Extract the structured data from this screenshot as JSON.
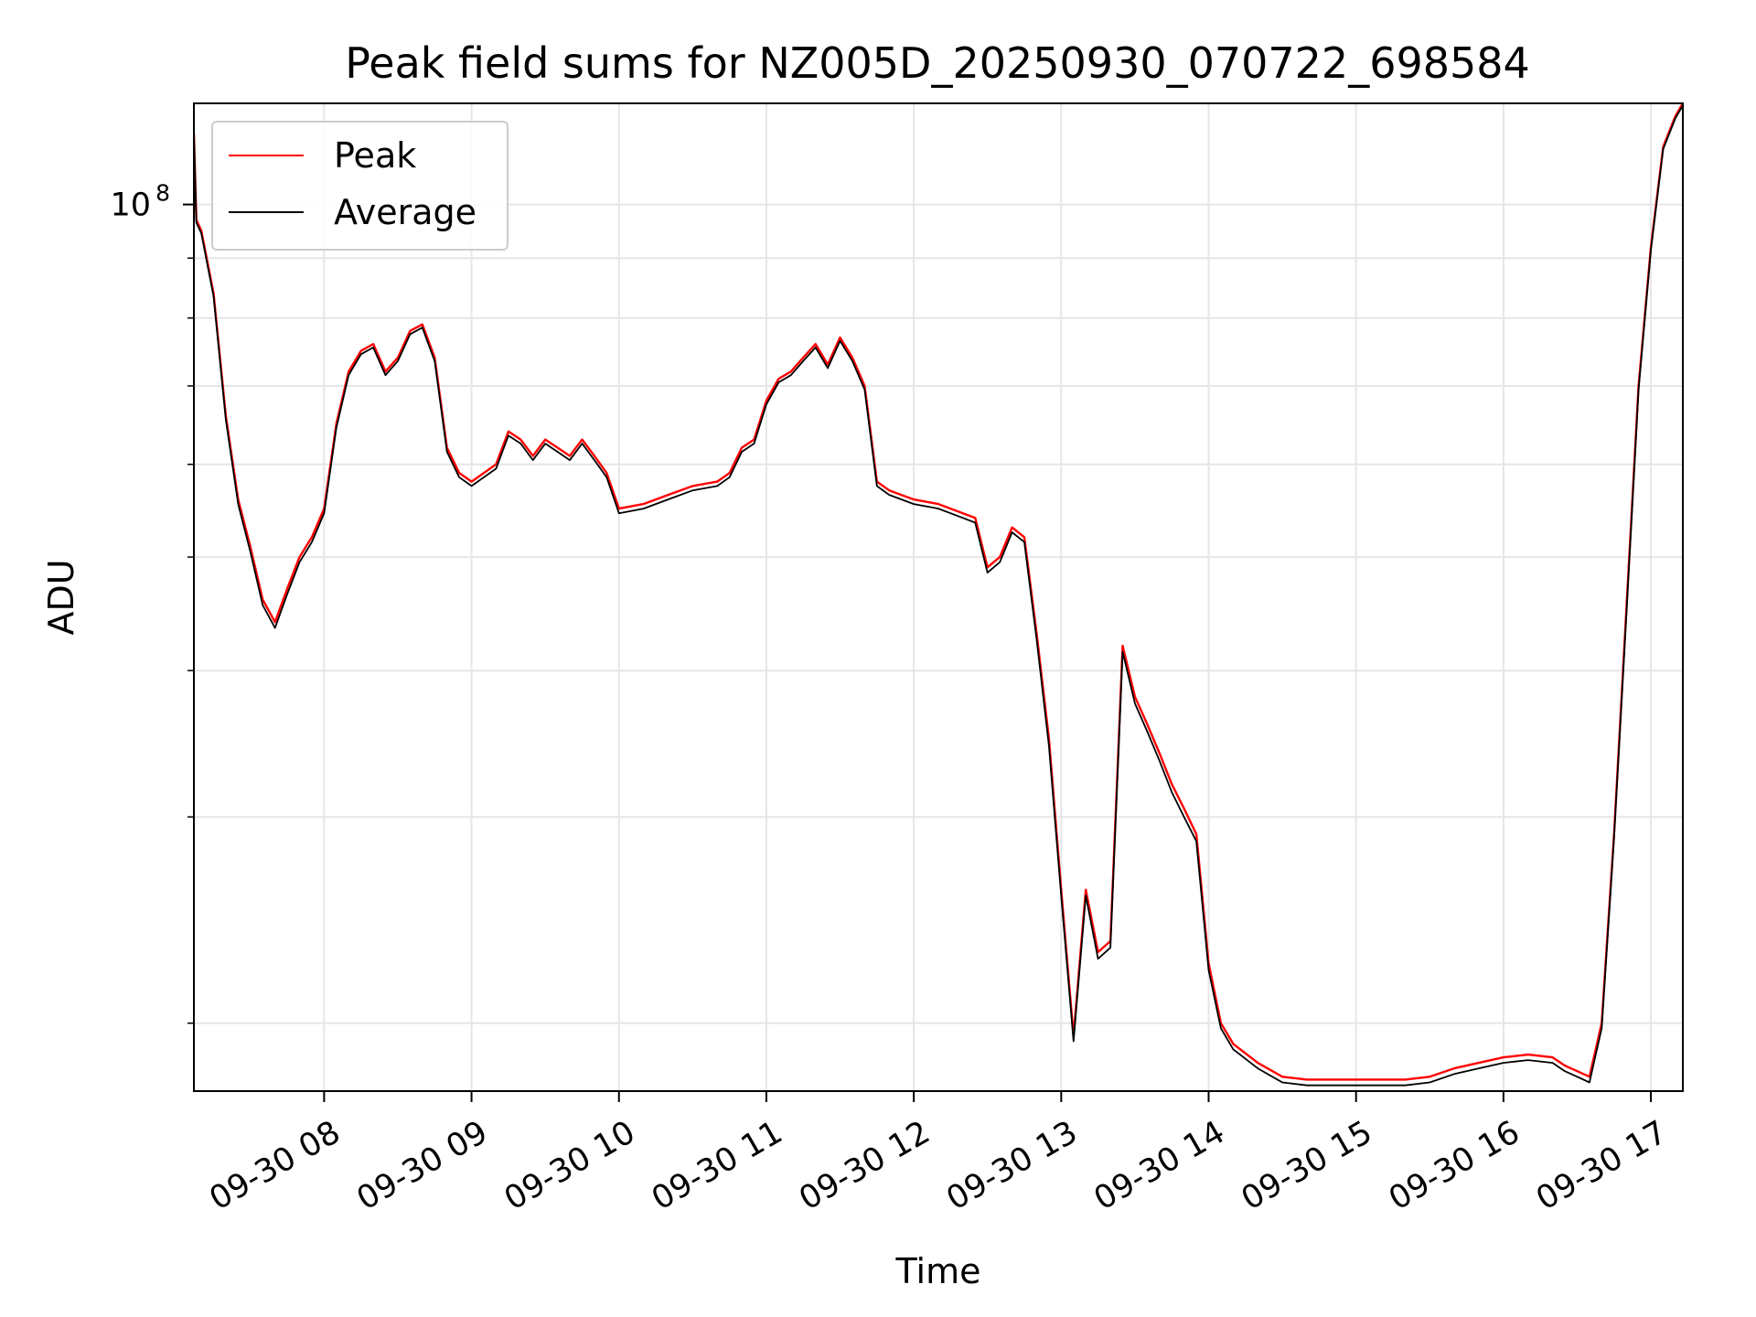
{
  "chart_data": {
    "type": "line",
    "title": "Peak field sums for NZ005D_20250930_070722_698584",
    "xlabel": "Time",
    "ylabel": "ADU",
    "yscale": "log",
    "xlim": [
      "2025-09-30 07:07",
      "2025-09-30 17:13"
    ],
    "ylim": [
      17500000,
      122000000
    ],
    "grid": true,
    "legend_position": "upper-left",
    "x_tick_labels": [
      "09-30 08",
      "09-30 09",
      "09-30 10",
      "09-30 11",
      "09-30 12",
      "09-30 13",
      "09-30 14",
      "09-30 15",
      "09-30 16",
      "09-30 17"
    ],
    "x_ticks": [
      "2025-09-30 08:00",
      "2025-09-30 09:00",
      "2025-09-30 10:00",
      "2025-09-30 11:00",
      "2025-09-30 12:00",
      "2025-09-30 13:00",
      "2025-09-30 14:00",
      "2025-09-30 15:00",
      "2025-09-30 16:00",
      "2025-09-30 17:00"
    ],
    "y_tick_label": "10",
    "y_tick_exponent": "8",
    "y_tick_value": 100000000,
    "y_minor_ticks": [
      20000000,
      30000000,
      40000000,
      50000000,
      60000000,
      70000000,
      80000000,
      90000000
    ],
    "x": [
      "2025-09-30 07:07",
      "2025-09-30 07:08",
      "2025-09-30 07:10",
      "2025-09-30 07:15",
      "2025-09-30 07:20",
      "2025-09-30 07:25",
      "2025-09-30 07:30",
      "2025-09-30 07:35",
      "2025-09-30 07:40",
      "2025-09-30 07:45",
      "2025-09-30 07:50",
      "2025-09-30 07:55",
      "2025-09-30 08:00",
      "2025-09-30 08:05",
      "2025-09-30 08:10",
      "2025-09-30 08:15",
      "2025-09-30 08:20",
      "2025-09-30 08:25",
      "2025-09-30 08:30",
      "2025-09-30 08:35",
      "2025-09-30 08:40",
      "2025-09-30 08:45",
      "2025-09-30 08:50",
      "2025-09-30 08:55",
      "2025-09-30 09:00",
      "2025-09-30 09:10",
      "2025-09-30 09:15",
      "2025-09-30 09:20",
      "2025-09-30 09:25",
      "2025-09-30 09:30",
      "2025-09-30 09:35",
      "2025-09-30 09:40",
      "2025-09-30 09:45",
      "2025-09-30 09:50",
      "2025-09-30 09:55",
      "2025-09-30 10:00",
      "2025-09-30 10:10",
      "2025-09-30 10:20",
      "2025-09-30 10:30",
      "2025-09-30 10:40",
      "2025-09-30 10:45",
      "2025-09-30 10:50",
      "2025-09-30 10:55",
      "2025-09-30 11:00",
      "2025-09-30 11:05",
      "2025-09-30 11:10",
      "2025-09-30 11:15",
      "2025-09-30 11:20",
      "2025-09-30 11:25",
      "2025-09-30 11:30",
      "2025-09-30 11:35",
      "2025-09-30 11:40",
      "2025-09-30 11:45",
      "2025-09-30 11:50",
      "2025-09-30 12:00",
      "2025-09-30 12:10",
      "2025-09-30 12:20",
      "2025-09-30 12:25",
      "2025-09-30 12:30",
      "2025-09-30 12:35",
      "2025-09-30 12:40",
      "2025-09-30 12:45",
      "2025-09-30 12:50",
      "2025-09-30 12:55",
      "2025-09-30 13:00",
      "2025-09-30 13:05",
      "2025-09-30 13:10",
      "2025-09-30 13:15",
      "2025-09-30 13:20",
      "2025-09-30 13:25",
      "2025-09-30 13:30",
      "2025-09-30 13:35",
      "2025-09-30 13:40",
      "2025-09-30 13:45",
      "2025-09-30 13:50",
      "2025-09-30 13:55",
      "2025-09-30 14:00",
      "2025-09-30 14:05",
      "2025-09-30 14:10",
      "2025-09-30 14:20",
      "2025-09-30 14:30",
      "2025-09-30 14:40",
      "2025-09-30 14:50",
      "2025-09-30 15:00",
      "2025-09-30 15:10",
      "2025-09-30 15:20",
      "2025-09-30 15:30",
      "2025-09-30 15:40",
      "2025-09-30 15:50",
      "2025-09-30 16:00",
      "2025-09-30 16:10",
      "2025-09-30 16:20",
      "2025-09-30 16:25",
      "2025-09-30 16:30",
      "2025-09-30 16:35",
      "2025-09-30 16:40",
      "2025-09-30 16:45",
      "2025-09-30 16:50",
      "2025-09-30 16:55",
      "2025-09-30 17:00",
      "2025-09-30 17:05",
      "2025-09-30 17:10",
      "2025-09-30 17:13"
    ],
    "series": [
      {
        "name": "Peak",
        "color": "#ff0000",
        "values": [
          115000000,
          97000000,
          95000000,
          84000000,
          66000000,
          56000000,
          51000000,
          46000000,
          44000000,
          47000000,
          50000000,
          52000000,
          55000000,
          65000000,
          72000000,
          75000000,
          76000000,
          72000000,
          74000000,
          78000000,
          79000000,
          74000000,
          62000000,
          59000000,
          58000000,
          60000000,
          64000000,
          63000000,
          61000000,
          63000000,
          62000000,
          61000000,
          63000000,
          61000000,
          59000000,
          55000000,
          55500000,
          56500000,
          57500000,
          58000000,
          59000000,
          62000000,
          63000000,
          68000000,
          71000000,
          72000000,
          74000000,
          76000000,
          73000000,
          77000000,
          74000000,
          70000000,
          58000000,
          57000000,
          56000000,
          55500000,
          54500000,
          54000000,
          49000000,
          50000000,
          53000000,
          52000000,
          43000000,
          35000000,
          26000000,
          19500000,
          26000000,
          23000000,
          23500000,
          42000000,
          38000000,
          36000000,
          34000000,
          32000000,
          30500000,
          29000000,
          22500000,
          20000000,
          19200000,
          18500000,
          18000000,
          17900000,
          17900000,
          17900000,
          17900000,
          17900000,
          18000000,
          18300000,
          18500000,
          18700000,
          18800000,
          18700000,
          18400000,
          18200000,
          18000000,
          20000000,
          29000000,
          45000000,
          70000000,
          92000000,
          112000000,
          119000000,
          122000000
        ]
      },
      {
        "name": "Average",
        "color": "#000000",
        "values": [
          115000000,
          96500000,
          94500000,
          83500000,
          65500000,
          55500000,
          50500000,
          45500000,
          43500000,
          46500000,
          49500000,
          51500000,
          54500000,
          64500000,
          71500000,
          74500000,
          75500000,
          71500000,
          73500000,
          77500000,
          78500000,
          73500000,
          61500000,
          58500000,
          57500000,
          59500000,
          63500000,
          62500000,
          60500000,
          62500000,
          61500000,
          60500000,
          62500000,
          60500000,
          58500000,
          54500000,
          55000000,
          56000000,
          57000000,
          57500000,
          58500000,
          61500000,
          62500000,
          67500000,
          70500000,
          71500000,
          73500000,
          75500000,
          72500000,
          76500000,
          73500000,
          69500000,
          57500000,
          56500000,
          55500000,
          55000000,
          54000000,
          53500000,
          48500000,
          49500000,
          52500000,
          51500000,
          42500000,
          34500000,
          25700000,
          19300000,
          25700000,
          22700000,
          23200000,
          41500000,
          37500000,
          35500000,
          33500000,
          31500000,
          30000000,
          28600000,
          22200000,
          19800000,
          19000000,
          18300000,
          17800000,
          17700000,
          17700000,
          17700000,
          17700000,
          17700000,
          17800000,
          18100000,
          18300000,
          18500000,
          18600000,
          18500000,
          18200000,
          18000000,
          17800000,
          19800000,
          28800000,
          44500000,
          69500000,
          91500000,
          111500000,
          118500000,
          121500000
        ]
      }
    ]
  }
}
